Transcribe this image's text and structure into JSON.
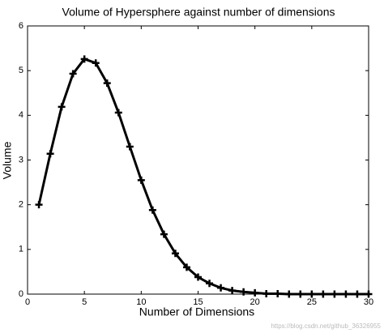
{
  "chart_data": {
    "type": "line",
    "title": "Volume of Hypersphere against number of dimensions",
    "x_label": "Number of Dimensions",
    "y_label": "Volume",
    "watermark": "https://blog.csdn.net/github_36326955",
    "x": [
      1,
      2,
      3,
      4,
      5,
      6,
      7,
      8,
      9,
      10,
      11,
      12,
      13,
      14,
      15,
      16,
      17,
      18,
      19,
      20,
      21,
      22,
      23,
      24,
      25,
      26,
      27,
      28,
      29,
      30
    ],
    "series": [
      {
        "name": "Volume",
        "color": "#000000",
        "values": [
          2.0,
          3.14,
          4.19,
          4.93,
          5.26,
          5.17,
          4.72,
          4.06,
          3.3,
          2.55,
          1.88,
          1.34,
          0.91,
          0.6,
          0.38,
          0.24,
          0.14,
          0.08,
          0.05,
          0.03,
          0.01,
          0.01,
          0,
          0,
          0,
          0,
          0,
          0,
          0,
          0
        ]
      }
    ],
    "xlim": [
      0,
      30
    ],
    "xticks": [
      0,
      5,
      10,
      15,
      20,
      25,
      30
    ],
    "ylim": [
      0,
      6
    ],
    "yticks": [
      0,
      1,
      2,
      3,
      4,
      5,
      6
    ]
  }
}
